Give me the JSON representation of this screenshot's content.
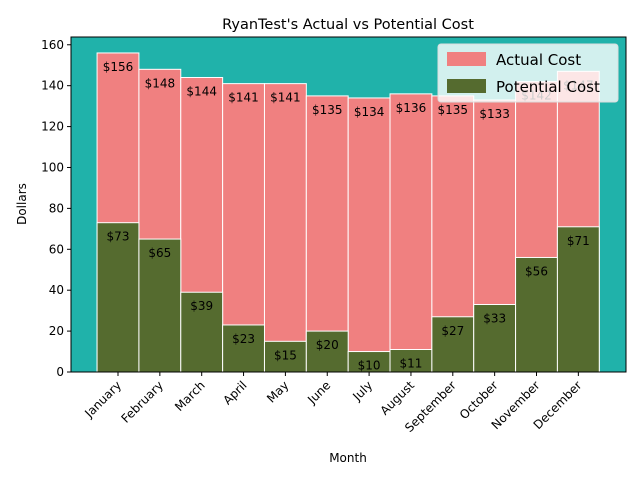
{
  "chart_data": {
    "type": "bar",
    "title": "RyanTest's Actual vs Potential Cost",
    "x_label": "Month",
    "y_label": "Dollars",
    "categories": [
      "January",
      "February",
      "March",
      "April",
      "May",
      "June",
      "July",
      "August",
      "September",
      "October",
      "November",
      "December"
    ],
    "series": [
      {
        "name": "Actual Cost",
        "color": "#f08080",
        "values": [
          156,
          148,
          144,
          141,
          141,
          135,
          134,
          136,
          135,
          133,
          142,
          147
        ],
        "value_labels": [
          "$156",
          "$148",
          "$144",
          "$141",
          "$141",
          "$135",
          "$134",
          "$136",
          "$135",
          "$133",
          "$142",
          "$147"
        ]
      },
      {
        "name": "Potential Cost",
        "color": "#556b2f",
        "values": [
          73,
          65,
          39,
          23,
          15,
          20,
          10,
          11,
          27,
          33,
          56,
          71
        ],
        "value_labels": [
          "$73",
          "$65",
          "$39",
          "$23",
          "$15",
          "$20",
          "$10",
          "$11",
          "$27",
          "$33",
          "$56",
          "$71"
        ]
      }
    ],
    "background": "#20b2aa",
    "ylim": [
      0,
      163.8
    ],
    "yticks": [
      0,
      20,
      40,
      60,
      80,
      100,
      120,
      140,
      160
    ],
    "legend": "upper right"
  }
}
